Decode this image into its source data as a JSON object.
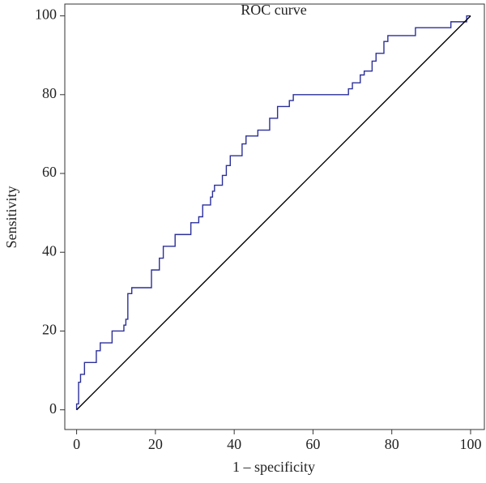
{
  "chart_data": {
    "type": "line",
    "title": "ROC curve",
    "x_label": "1 – specificity",
    "y_label": "Sensitivity",
    "xlim": [
      -3,
      103.5
    ],
    "ylim": [
      -5,
      103
    ],
    "xticks": [
      0,
      20,
      40,
      60,
      80,
      100
    ],
    "yticks": [
      0,
      20,
      40,
      60,
      80,
      100
    ],
    "grid": false,
    "series": [
      {
        "color": "#2b2f9a",
        "x": [
          0,
          0,
          0.5,
          0.5,
          1,
          1,
          2,
          2,
          5,
          5,
          6,
          6,
          9,
          9,
          12,
          12,
          12.5,
          12.5,
          13,
          13,
          14,
          14,
          19,
          19,
          21,
          21,
          22,
          22,
          25,
          25,
          29,
          29,
          31,
          31,
          32,
          32,
          34,
          34,
          34.5,
          34.5,
          35,
          35,
          37,
          37,
          38,
          38,
          39,
          39,
          42,
          42,
          43,
          43,
          46,
          46,
          49,
          49,
          51,
          51,
          54,
          54,
          55,
          55,
          69,
          69,
          70,
          70,
          72,
          72,
          73,
          73,
          75,
          75,
          76,
          76,
          78,
          78,
          79,
          79,
          86,
          86,
          95,
          95,
          99,
          99,
          100
        ],
        "values": [
          0,
          1.5,
          1.5,
          7,
          7,
          9,
          9,
          12,
          12,
          15,
          15,
          17,
          17,
          20,
          20,
          21.5,
          21.5,
          23,
          23,
          29.5,
          29.5,
          31,
          31,
          35.5,
          35.5,
          38.5,
          38.5,
          41.5,
          41.5,
          44.5,
          44.5,
          47.5,
          47.5,
          49,
          49,
          52,
          52,
          54,
          54,
          55.5,
          55.5,
          57,
          57,
          59.5,
          59.5,
          62,
          62,
          64.5,
          64.5,
          67.5,
          67.5,
          69.5,
          69.5,
          71,
          71,
          74,
          74,
          77,
          77,
          78.5,
          78.5,
          80,
          80,
          81.5,
          81.5,
          83,
          83,
          85,
          85,
          86,
          86,
          88.5,
          88.5,
          90.5,
          90.5,
          93.5,
          93.5,
          95,
          95,
          97,
          97,
          98.5,
          98.5,
          100,
          100
        ]
      },
      {
        "color": "#000000",
        "x": [
          0,
          100
        ],
        "values": [
          0,
          100
        ]
      }
    ]
  }
}
